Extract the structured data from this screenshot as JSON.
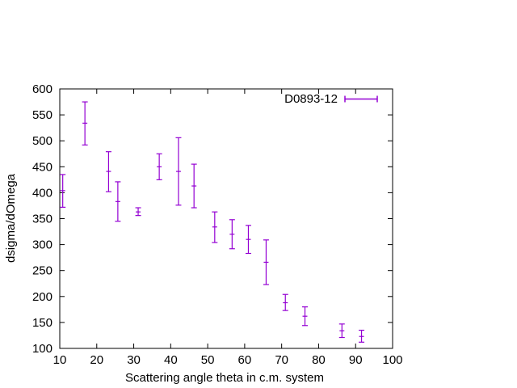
{
  "chart_data": {
    "type": "scatter",
    "title": "",
    "xlabel": "Scattering angle theta in c.m. system",
    "ylabel": "dsigma/dOmega",
    "xlim": [
      10,
      100
    ],
    "ylim": [
      100,
      600
    ],
    "xticks": [
      10,
      20,
      30,
      40,
      50,
      60,
      70,
      80,
      90,
      100
    ],
    "yticks": [
      100,
      150,
      200,
      250,
      300,
      350,
      400,
      450,
      500,
      550,
      600
    ],
    "grid": false,
    "legend": "top-right",
    "series": [
      {
        "name": "D0893-12",
        "color": "#9400d3",
        "errorbars": "y",
        "points": [
          {
            "x": 10.8,
            "y": 404,
            "ylow": 372,
            "yhigh": 435
          },
          {
            "x": 16.8,
            "y": 534,
            "ylow": 492,
            "yhigh": 575
          },
          {
            "x": 23.2,
            "y": 441,
            "ylow": 402,
            "yhigh": 479
          },
          {
            "x": 25.7,
            "y": 383,
            "ylow": 345,
            "yhigh": 421
          },
          {
            "x": 31.2,
            "y": 363,
            "ylow": 356,
            "yhigh": 371
          },
          {
            "x": 36.9,
            "y": 450,
            "ylow": 425,
            "yhigh": 475
          },
          {
            "x": 42.1,
            "y": 441,
            "ylow": 376,
            "yhigh": 506
          },
          {
            "x": 46.3,
            "y": 413,
            "ylow": 371,
            "yhigh": 455
          },
          {
            "x": 51.9,
            "y": 334,
            "ylow": 304,
            "yhigh": 363
          },
          {
            "x": 56.6,
            "y": 320,
            "ylow": 292,
            "yhigh": 348
          },
          {
            "x": 61.0,
            "y": 310,
            "ylow": 283,
            "yhigh": 337
          },
          {
            "x": 65.8,
            "y": 266,
            "ylow": 223,
            "yhigh": 309
          },
          {
            "x": 71.0,
            "y": 188,
            "ylow": 173,
            "yhigh": 204
          },
          {
            "x": 76.3,
            "y": 162,
            "ylow": 144,
            "yhigh": 180
          },
          {
            "x": 86.3,
            "y": 134,
            "ylow": 121,
            "yhigh": 147
          },
          {
            "x": 91.6,
            "y": 123,
            "ylow": 112,
            "yhigh": 135
          }
        ]
      }
    ]
  }
}
